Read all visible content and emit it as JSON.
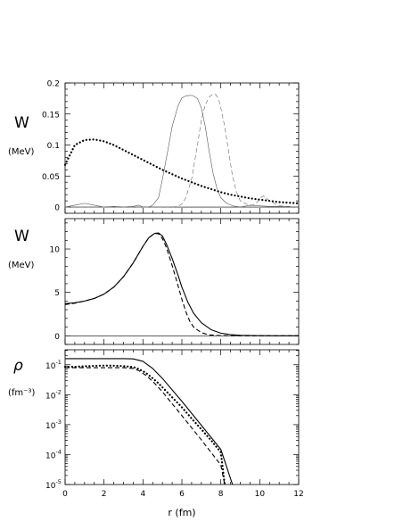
{
  "x_axis": {
    "label": "r (fm)",
    "ticks": [
      "0",
      "2",
      "4",
      "6",
      "8",
      "10",
      "12"
    ]
  },
  "chart_data": [
    {
      "type": "line",
      "ylabel": "W",
      "yunit": "(MeV)",
      "xlim": [
        0,
        12
      ],
      "ylim": [
        -0.01,
        0.2
      ],
      "yticks": [
        {
          "v": 0,
          "label": "0"
        },
        {
          "v": 0.05,
          "label": "0.05"
        },
        {
          "v": 0.1,
          "label": "0.1"
        },
        {
          "v": 0.15,
          "label": "0.15"
        },
        {
          "v": 0.2,
          "label": "0.2"
        }
      ],
      "series": [
        {
          "style": "solid",
          "x": [
            0,
            0.5,
            1,
            1.5,
            2,
            2.5,
            3,
            3.5,
            3.8,
            4,
            4.3,
            4.5,
            4.8,
            5,
            5.3,
            5.5,
            5.8,
            6,
            6.2,
            6.4,
            6.5,
            6.6,
            6.8,
            7,
            7.2,
            7.4,
            7.6,
            7.8,
            8,
            8.3,
            8.6,
            9,
            9.5,
            10,
            10.5,
            11,
            12
          ],
          "y": [
            0,
            0.003,
            0.006,
            0.003,
            0,
            0.001,
            0,
            0.001,
            0.003,
            0,
            0,
            0.003,
            0.015,
            0.045,
            0.095,
            0.13,
            0.163,
            0.176,
            0.179,
            0.18,
            0.18,
            0.179,
            0.175,
            0.16,
            0.13,
            0.09,
            0.055,
            0.03,
            0.015,
            0.006,
            0.002,
            0,
            0.003,
            0.002,
            0.001,
            0.001,
            0
          ]
        },
        {
          "style": "dashed",
          "x": [
            0,
            1,
            2,
            3,
            4,
            4.5,
            5,
            5.5,
            5.8,
            6,
            6.2,
            6.5,
            6.8,
            7,
            7.2,
            7.4,
            7.5,
            7.6,
            7.7,
            7.8,
            7.9,
            8,
            8.2,
            8.4,
            8.6,
            8.8,
            9,
            9.5,
            9.8,
            10,
            10.2,
            10.5,
            11,
            12
          ],
          "y": [
            0,
            0,
            0,
            0,
            0,
            0,
            0,
            0,
            0.001,
            0.005,
            0.015,
            0.045,
            0.1,
            0.14,
            0.165,
            0.177,
            0.18,
            0.182,
            0.182,
            0.179,
            0.172,
            0.16,
            0.13,
            0.09,
            0.05,
            0.025,
            0.01,
            0.002,
            0.005,
            0.014,
            0.018,
            0.01,
            0.002,
            0
          ]
        },
        {
          "style": "dotted",
          "x": [
            0,
            0.5,
            1,
            1.5,
            2,
            2.5,
            3,
            3.5,
            4,
            4.5,
            5,
            5.5,
            6,
            6.5,
            7,
            7.5,
            8,
            8.5,
            9,
            9.5,
            10,
            10.5,
            11,
            11.5,
            12
          ],
          "y": [
            0.068,
            0.1,
            0.108,
            0.109,
            0.106,
            0.1,
            0.092,
            0.084,
            0.076,
            0.068,
            0.06,
            0.053,
            0.046,
            0.04,
            0.034,
            0.029,
            0.024,
            0.02,
            0.017,
            0.014,
            0.012,
            0.01,
            0.008,
            0.007,
            0.006
          ]
        }
      ]
    },
    {
      "type": "line",
      "ylabel": "W",
      "yunit": "(MeV)",
      "xlim": [
        0,
        12
      ],
      "ylim": [
        -1,
        13.5
      ],
      "yticks": [
        {
          "v": 0,
          "label": "0"
        },
        {
          "v": 5,
          "label": "5"
        },
        {
          "v": 10,
          "label": "10"
        }
      ],
      "series": [
        {
          "style": "solid",
          "x": [
            0,
            0.5,
            1,
            1.5,
            2,
            2.5,
            3,
            3.5,
            4,
            4.3,
            4.6,
            4.8,
            5,
            5.2,
            5.5,
            5.8,
            6,
            6.3,
            6.6,
            7,
            7.5,
            8,
            8.5,
            9,
            10,
            11,
            12
          ],
          "y": [
            3.7,
            3.8,
            4,
            4.3,
            4.8,
            5.6,
            6.8,
            8.4,
            10.3,
            11.3,
            11.8,
            11.85,
            11.5,
            10.6,
            8.9,
            7,
            5.6,
            3.9,
            2.6,
            1.5,
            0.7,
            0.3,
            0.13,
            0.05,
            0.01,
            0,
            0
          ]
        },
        {
          "style": "dashed",
          "x": [
            0,
            0.5,
            1,
            1.5,
            2,
            2.5,
            3,
            3.5,
            4,
            4.3,
            4.6,
            4.8,
            5,
            5.2,
            5.5,
            5.8,
            6,
            6.2,
            6.4,
            6.6,
            7,
            7.4,
            8,
            9,
            10,
            12
          ],
          "y": [
            3.6,
            3.75,
            4,
            4.3,
            4.8,
            5.6,
            6.8,
            8.4,
            10.3,
            11.3,
            11.8,
            11.75,
            11.2,
            10.2,
            8.1,
            5.8,
            4.2,
            2.8,
            1.7,
            1,
            0.35,
            0.1,
            0.02,
            0,
            0,
            0
          ]
        }
      ]
    },
    {
      "type": "line",
      "ylabel": "ρ",
      "yunit": "(fm⁻³)",
      "xlim": [
        0,
        12
      ],
      "ylog": true,
      "ylim_exp": [
        -5,
        -0.5
      ],
      "yticks": [
        {
          "e": -1,
          "label": "10",
          "sup": "-1"
        },
        {
          "e": -2,
          "label": "10",
          "sup": "-2"
        },
        {
          "e": -3,
          "label": "10",
          "sup": "-3"
        },
        {
          "e": -4,
          "label": "10",
          "sup": "-4"
        },
        {
          "e": -5,
          "label": "10",
          "sup": "-5"
        }
      ],
      "series": [
        {
          "style": "solid",
          "x": [
            0,
            1,
            2,
            3,
            3.5,
            4,
            4.5,
            5,
            6,
            7,
            8,
            8.6
          ],
          "y": [
            0.16,
            0.16,
            0.16,
            0.16,
            0.157,
            0.13,
            0.075,
            0.035,
            0.006,
            0.00095,
            0.00015,
            4.8e-06
          ]
        },
        {
          "style": "dashed",
          "x": [
            0,
            1,
            2,
            3,
            3.5,
            3.8,
            4.2,
            4.6,
            5,
            6,
            7,
            8,
            8.2
          ],
          "y": [
            0.08,
            0.08,
            0.08,
            0.08,
            0.075,
            0.063,
            0.042,
            0.024,
            0.0125,
            0.002,
            0.00031,
            4.5e-05,
            8.2e-06
          ]
        },
        {
          "style": "dotted",
          "x": [
            0,
            0.5,
            1,
            1.5,
            2,
            2.5,
            3,
            3.5,
            3.8,
            4.1,
            4.4,
            4.8,
            5.2,
            5.6,
            6,
            6.5,
            7,
            7.5,
            8,
            8.2
          ],
          "y": [
            0.085,
            0.086,
            0.089,
            0.092,
            0.094,
            0.093,
            0.09,
            0.084,
            0.072,
            0.056,
            0.04,
            0.024,
            0.013,
            0.007,
            0.0038,
            0.0016,
            0.0007,
            0.0003,
            0.00012,
            8.5e-06
          ]
        }
      ]
    }
  ]
}
